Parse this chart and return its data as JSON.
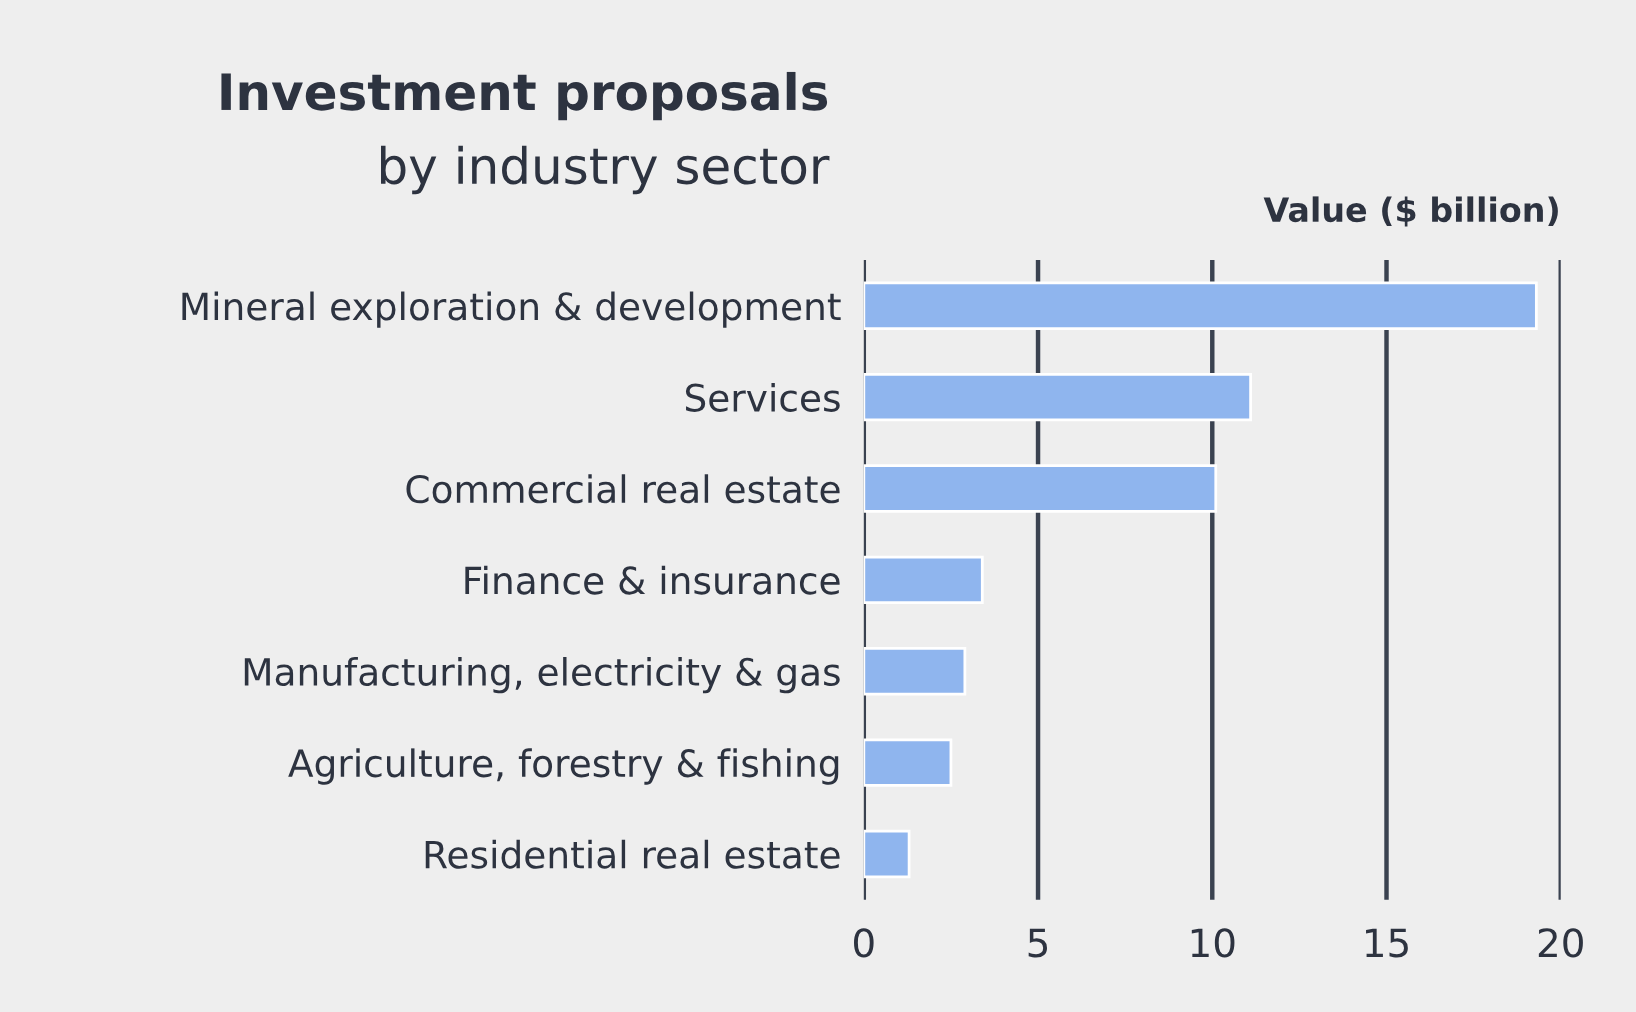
{
  "chart_data": {
    "type": "bar",
    "orientation": "horizontal",
    "title": "Investment proposals",
    "subtitle": "by industry sector",
    "xlabel": "Value ($ billion)",
    "categories": [
      "Mineral exploration & development",
      "Services",
      "Commercial real estate",
      "Finance & insurance",
      "Manufacturing, electricity & gas",
      "Agriculture, forestry & fishing",
      "Residential real estate"
    ],
    "values": [
      19.3,
      11.1,
      10.1,
      3.4,
      2.9,
      2.5,
      1.3
    ],
    "color": "#8fb5ee",
    "xlim": [
      0,
      20
    ],
    "xticks": [
      0,
      5,
      10,
      15,
      20
    ],
    "grid": "x"
  }
}
